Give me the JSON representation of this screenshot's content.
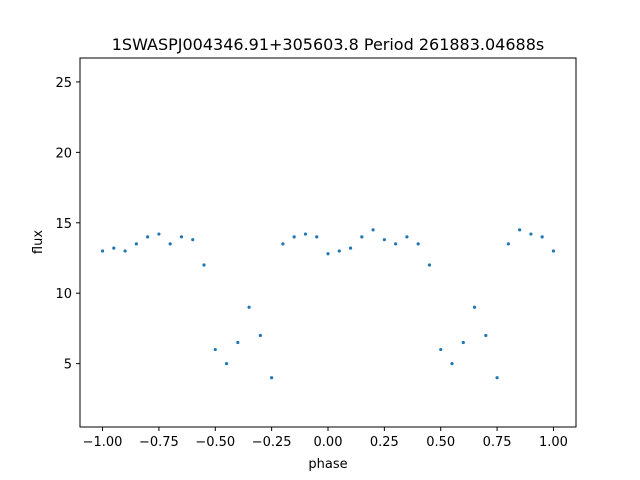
{
  "chart_data": {
    "type": "scatter",
    "title": "1SWASPJ004346.91+305603.8 Period 261883.04688s",
    "xlabel": "phase",
    "ylabel": "flux",
    "xlim": [
      -1.1,
      1.1
    ],
    "ylim": [
      0.5,
      26.7
    ],
    "xticks": [
      -1.0,
      -0.75,
      -0.5,
      -0.25,
      0.0,
      0.25,
      0.5,
      0.75,
      1.0
    ],
    "xtick_labels": [
      "−1.00",
      "−0.75",
      "−0.50",
      "−0.25",
      "0.00",
      "0.25",
      "0.50",
      "0.75",
      "1.00"
    ],
    "yticks": [
      5,
      10,
      15,
      20,
      25
    ],
    "ytick_labels": [
      "5",
      "10",
      "15",
      "20",
      "25"
    ],
    "grid": false,
    "marker_color": "#1f77b4",
    "series": [
      {
        "x": [
          -1.0,
          -0.95,
          -0.9,
          -0.85,
          -0.8,
          -0.75,
          -0.7,
          -0.65,
          -0.6,
          -0.55,
          -0.5,
          -0.45,
          -0.4,
          -0.35,
          -0.3,
          -0.25,
          -0.2,
          -0.15,
          -0.1,
          -0.05,
          0.0,
          0.05,
          0.1,
          0.15,
          0.2,
          0.25,
          0.3,
          0.35,
          0.4,
          0.45,
          0.5,
          0.55,
          0.6,
          0.65,
          0.7,
          0.75,
          0.8,
          0.85,
          0.9,
          0.95,
          1.0
        ],
        "y": [
          13.0,
          13.2,
          13.0,
          13.5,
          14.0,
          14.2,
          13.5,
          14.0,
          13.8,
          12.0,
          6.0,
          5.0,
          6.5,
          9.0,
          7.0,
          4.0,
          13.5,
          14.0,
          14.2,
          14.0,
          12.8,
          13.0,
          13.2,
          14.0,
          14.5,
          13.8,
          13.5,
          14.0,
          13.5,
          12.0,
          6.0,
          5.0,
          6.5,
          9.0,
          7.0,
          4.0,
          13.5,
          14.5,
          14.2,
          14.0,
          13.0
        ]
      }
    ]
  }
}
